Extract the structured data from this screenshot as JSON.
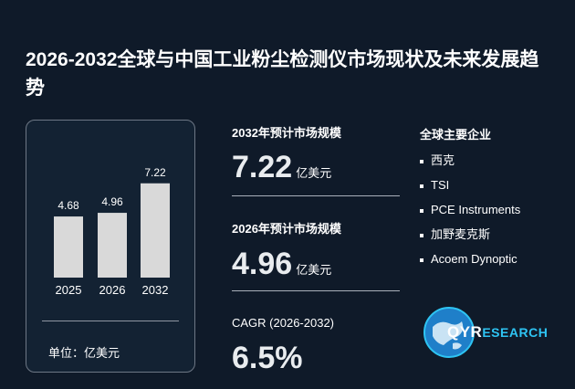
{
  "title": "2026-2032全球与中国工业粉尘检测仪市场现状及未来发展趋势",
  "chart_data": {
    "type": "bar",
    "categories": [
      "2025",
      "2026",
      "2032"
    ],
    "values": [
      4.68,
      4.96,
      7.22
    ],
    "data_labels": [
      "4.68",
      "4.96",
      "7.22"
    ],
    "unit_label": "单位：亿美元",
    "bar_color": "#d9d9d9"
  },
  "stats": [
    {
      "label": "2032年预计市场规模",
      "value": "7.22",
      "unit": "亿美元"
    },
    {
      "label": "2026年预计市场规模",
      "value": "4.96",
      "unit": "亿美元"
    },
    {
      "label": "CAGR (2026-2032)",
      "value": "6.5%",
      "unit": ""
    }
  ],
  "companies": {
    "heading": "全球主要企业",
    "items": [
      "西克",
      "TSI",
      "PCE Instruments",
      "加野麦克斯",
      "Acoem Dynoptic"
    ]
  },
  "logo": {
    "text_main": "QYR",
    "text_accent": "ESEARCH",
    "icon": "globe-icon"
  },
  "colors": {
    "background": "#0f1a29",
    "accent": "#2ec4f3",
    "bar": "#d9d9d9"
  }
}
